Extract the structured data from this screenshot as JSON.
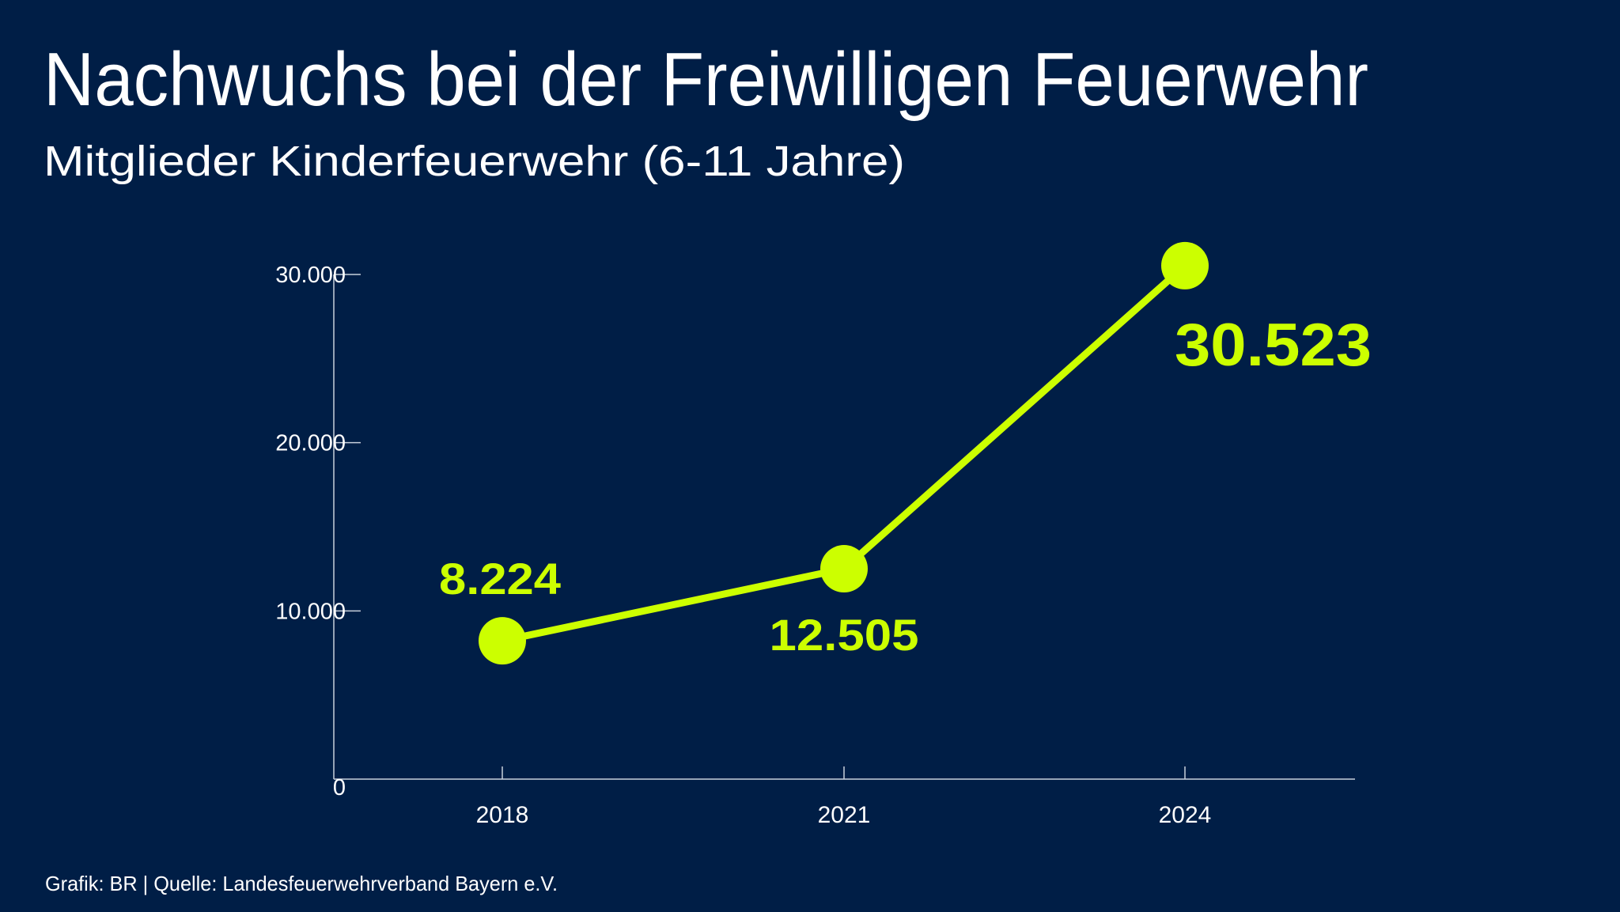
{
  "title": "Nachwuchs bei der Freiwilligen Feuerwehr",
  "subtitle": "Mitglieder Kinderfeuerwehr (6-11 Jahre)",
  "footer": "Grafik: BR | Quelle: Landesfeuerwehrverband Bayern e.V.",
  "colors": {
    "background": "#001e46",
    "accent": "#ccff00",
    "text": "#ffffff"
  },
  "chart_data": {
    "type": "line",
    "title": "Nachwuchs bei der Freiwilligen Feuerwehr",
    "subtitle": "Mitglieder Kinderfeuerwehr (6-11 Jahre)",
    "categories": [
      "2018",
      "2021",
      "2024"
    ],
    "values": [
      8224,
      12505,
      30523
    ],
    "data_labels": [
      "8.224",
      "12.505",
      "30.523"
    ],
    "ylim": [
      0,
      30000
    ],
    "yticks": [
      0,
      10000,
      20000,
      30000
    ],
    "ytick_labels": [
      "0",
      "10.000",
      "20.000",
      "30.000"
    ],
    "grid": false,
    "legend": "none",
    "xlabel": "",
    "ylabel": ""
  }
}
